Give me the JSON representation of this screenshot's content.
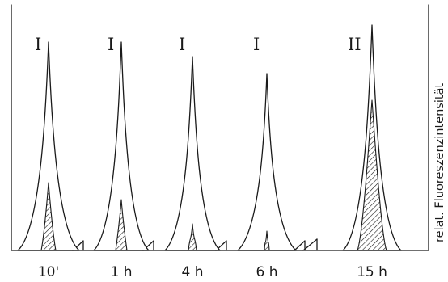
{
  "chart_data": {
    "type": "area",
    "ylabel": "relat. Fluoreszenzintensität",
    "ylim": [
      0,
      1
    ],
    "categories": [
      "10'",
      "1 h",
      "4 h",
      "6 h",
      "15 h"
    ],
    "panels": [
      {
        "time": "10'",
        "roman": "I",
        "peak_height": 0.86,
        "inner_peak_height": 0.28
      },
      {
        "time": "1 h",
        "roman": "I",
        "peak_height": 0.86,
        "inner_peak_height": 0.21
      },
      {
        "time": "4 h",
        "roman": "I",
        "peak_height": 0.8,
        "inner_peak_height": 0.11
      },
      {
        "time": "6 h",
        "roman": "I",
        "peak_height": 0.73,
        "inner_peak_height": 0.08
      },
      {
        "time": "15 h",
        "roman": "II",
        "peak_height": 0.93,
        "inner_peak_height": 0.62
      }
    ],
    "colors": {
      "ink": "#1a1a1a",
      "background": "#ffffff"
    }
  }
}
